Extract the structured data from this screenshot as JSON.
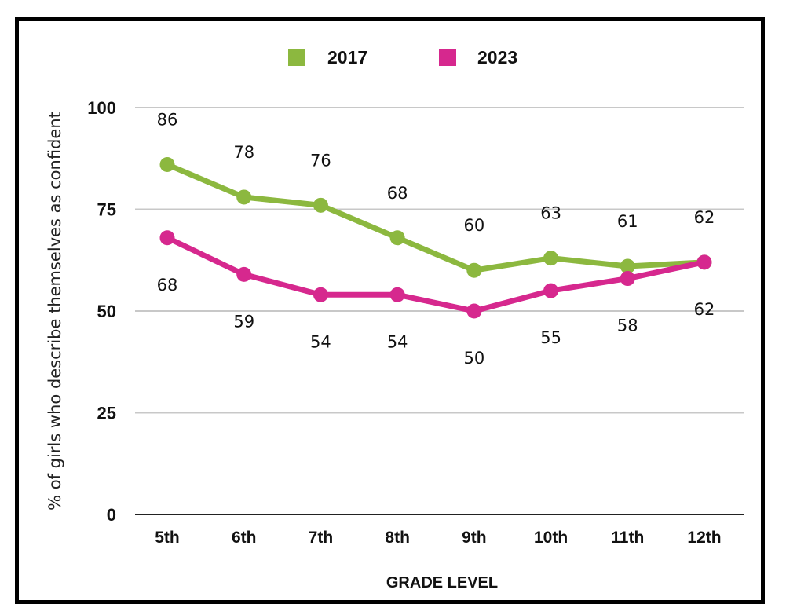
{
  "chart_data": {
    "type": "line",
    "title": "",
    "xlabel": "GRADE LEVEL",
    "ylabel": "% of girls who describe themselves as confident",
    "categories": [
      "5th",
      "6th",
      "7th",
      "8th",
      "9th",
      "10th",
      "11th",
      "12th"
    ],
    "ylim": [
      0,
      100
    ],
    "yticks": [
      0,
      25,
      50,
      75,
      100
    ],
    "grid": true,
    "legend_position": "top-center",
    "series": [
      {
        "name": "2017",
        "color": "#8cb83f",
        "values": [
          86,
          78,
          76,
          68,
          60,
          63,
          61,
          62
        ],
        "label_position": "above"
      },
      {
        "name": "2023",
        "color": "#d6288e",
        "values": [
          68,
          59,
          54,
          54,
          50,
          55,
          58,
          62
        ],
        "label_position": "below"
      }
    ]
  }
}
